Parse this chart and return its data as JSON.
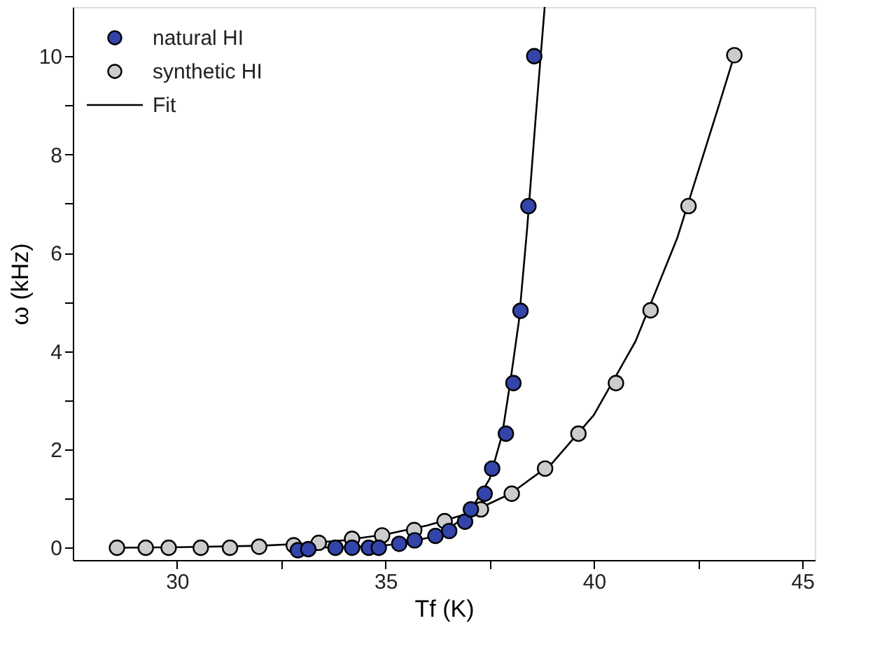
{
  "chart_data": {
    "type": "scatter",
    "xlabel": "Tf (K)",
    "ylabel": "ω (kHz)",
    "xlim": [
      27.5,
      45.3
    ],
    "ylim": [
      -0.25,
      11
    ],
    "xticks": [
      30,
      {
        "value": 32.5,
        "label": null
      },
      35,
      {
        "value": 37.5,
        "label": null
      },
      40,
      {
        "value": 42.5,
        "label": null
      },
      45
    ],
    "yticks": [
      0,
      {
        "value": 1,
        "label": null
      },
      2,
      {
        "value": 3,
        "label": null
      },
      4,
      {
        "value": 5,
        "label": null
      },
      6,
      {
        "value": 7,
        "label": null
      },
      8,
      {
        "value": 9,
        "label": null
      },
      10
    ],
    "grid": false,
    "legend": "top left",
    "series": [
      {
        "name": "natural HI",
        "marker": "circle",
        "color": "#3344aa",
        "x": [
          32.9,
          33.15,
          33.8,
          34.2,
          34.6,
          34.84,
          35.33,
          35.7,
          36.2,
          36.53,
          36.91,
          37.05,
          37.38,
          37.56,
          37.89,
          38.07,
          38.24,
          38.43,
          38.57
        ],
        "values": [
          -0.05,
          -0.03,
          0,
          0,
          0,
          0,
          0.08,
          0.15,
          0.24,
          0.34,
          0.53,
          0.78,
          1.1,
          1.61,
          2.32,
          3.35,
          4.82,
          6.95,
          10.0
        ]
      },
      {
        "name": "synthetic HI",
        "marker": "circle",
        "color": "#cccccc",
        "x": [
          28.56,
          29.25,
          29.8,
          30.57,
          31.27,
          31.97,
          32.8,
          33.4,
          34.2,
          34.92,
          35.69,
          36.42,
          37.29,
          38.03,
          38.83,
          39.63,
          40.53,
          41.36,
          42.27,
          43.37
        ],
        "values": [
          0,
          0,
          0,
          0,
          0,
          0.02,
          0.05,
          0.1,
          0.18,
          0.25,
          0.36,
          0.54,
          0.78,
          1.1,
          1.61,
          2.32,
          3.35,
          4.83,
          6.95,
          10.02
        ]
      },
      {
        "name": "Fit",
        "type": "line",
        "marker": "none",
        "line_style": "solid",
        "color": "#000000",
        "x": [
          33,
          34,
          35,
          35.5,
          36,
          36.5,
          37,
          37.5,
          37.8,
          38,
          38.2,
          38.4,
          38.6,
          38.82
        ],
        "values": [
          0,
          0.01,
          0.05,
          0.1,
          0.2,
          0.37,
          0.7,
          1.4,
          2.3,
          3.4,
          4.6,
          6.5,
          8.7,
          11
        ]
      },
      {
        "type": "line",
        "marker": "none",
        "line_style": "solid",
        "color": "#000000",
        "x": [
          28.5,
          30,
          32,
          33,
          34,
          35,
          36,
          37,
          38,
          39,
          40,
          41,
          42,
          43,
          43.37
        ],
        "values": [
          0,
          0.01,
          0.04,
          0.08,
          0.15,
          0.27,
          0.45,
          0.7,
          1.1,
          1.72,
          2.7,
          4.2,
          6.3,
          9.0,
          10.02
        ]
      }
    ]
  }
}
